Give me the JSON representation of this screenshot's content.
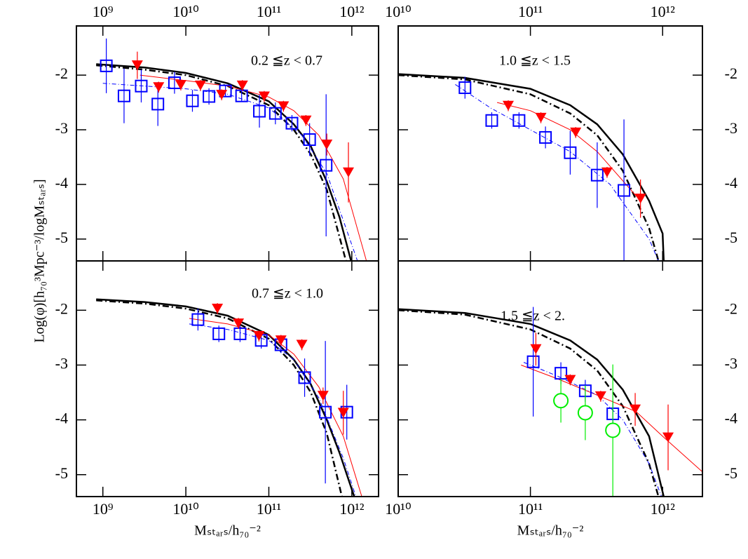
{
  "chart_data": [
    {
      "type": "scatter",
      "annotation": "0.2 ≦z < 0.7",
      "ylabel": "Log(φ)[h₇₀³Mpc⁻³/logMₛₜₐᵣₛ]",
      "xscale": "log",
      "xlim": [
        480000000.0,
        2100000000000.0
      ],
      "ylim": [
        -5.4,
        -1.1
      ],
      "xticks": [
        {
          "value": 1000000000.0,
          "label": "10⁹"
        },
        {
          "value": 10000000000.0,
          "label": "10¹⁰"
        },
        {
          "value": 100000000000.0,
          "label": "10¹¹"
        },
        {
          "value": 1000000000000.0,
          "label": "10¹²"
        }
      ],
      "yticks": [
        -2,
        -3,
        -4,
        -5
      ],
      "xtick_side": "top",
      "ytick_side": "left",
      "series": [
        {
          "style": "solid",
          "color": "#000000",
          "x": [
            830000000.0,
            3200000000.0,
            10000000000.0,
            32000000000.0,
            100000000000.0,
            200000000000.0,
            320000000000.0,
            500000000000.0,
            710000000000.0,
            980000000000.0
          ],
          "values": [
            -1.8,
            -1.86,
            -1.96,
            -2.15,
            -2.48,
            -2.9,
            -3.3,
            -3.95,
            -4.6,
            -5.4
          ]
        },
        {
          "style": "dashdot",
          "color": "#000000",
          "x": [
            830000000.0,
            3200000000.0,
            10000000000.0,
            32000000000.0,
            100000000000.0,
            200000000000.0,
            320000000000.0,
            500000000000.0,
            850000000000.0
          ],
          "values": [
            -1.82,
            -1.9,
            -2.0,
            -2.2,
            -2.55,
            -3.0,
            -3.45,
            -4.1,
            -5.4
          ]
        },
        {
          "style": "thin",
          "color": "#ff0000",
          "x": [
            2800000000.0,
            10000000000.0,
            32000000000.0,
            100000000000.0,
            200000000000.0,
            400000000000.0,
            790000000000.0,
            1500000000000.0
          ],
          "values": [
            -2.0,
            -2.1,
            -2.2,
            -2.4,
            -2.65,
            -3.1,
            -3.9,
            -5.4
          ]
        },
        {
          "style": "thindash",
          "color": "#0000ff",
          "x": [
            1000000000.0,
            3200000000.0,
            10000000000.0,
            32000000000.0,
            100000000000.0,
            250000000000.0,
            500000000000.0,
            1170000000000.0
          ],
          "values": [
            -2.15,
            -2.2,
            -2.25,
            -2.35,
            -2.6,
            -3.1,
            -3.8,
            -5.4
          ]
        },
        {
          "style": "square",
          "color": "#0000ff",
          "x": [
            1100000000.0,
            1800000000.0,
            2900000000.0,
            4600000000.0,
            7300000000.0,
            12000000000.0,
            19000000000.0,
            30000000000.0,
            47000000000.0,
            77000000000.0,
            120000000000.0,
            190000000000.0,
            310000000000.0,
            490000000000.0
          ],
          "values": [
            -1.83,
            -2.38,
            -2.2,
            -2.53,
            -2.14,
            -2.47,
            -2.39,
            -2.29,
            -2.38,
            -2.66,
            -2.7,
            -2.88,
            -3.18,
            -3.65
          ],
          "errors": [
            0.5,
            0.5,
            0.3,
            0.4,
            0.2,
            0.2,
            0.15,
            0.1,
            0.1,
            0.3,
            0.2,
            0.15,
            0.3,
            1.3
          ]
        },
        {
          "style": "triangle",
          "color": "#ff0000",
          "x": [
            2600000000.0,
            4700000000.0,
            8700000000.0,
            15000000000.0,
            27000000000.0,
            48000000000.0,
            88000000000.0,
            150000000000.0,
            280000000000.0,
            500000000000.0,
            910000000000.0
          ],
          "values": [
            -1.82,
            -2.22,
            -2.18,
            -2.19,
            -2.36,
            -2.19,
            -2.39,
            -2.57,
            -2.83,
            -3.27,
            -3.78
          ],
          "errors": [
            0.25,
            0.1,
            0.1,
            0.1,
            0.1,
            0.1,
            0.1,
            0.1,
            0.1,
            0.2,
            0.55
          ]
        }
      ]
    },
    {
      "type": "scatter",
      "annotation": "1.0 ≦z < 1.5",
      "xscale": "log",
      "xlim": [
        10000000000.0,
        2000000000000.0
      ],
      "ylim": [
        -5.4,
        -1.1
      ],
      "xticks": [
        {
          "value": 10000000000.0,
          "label": "10¹⁰"
        },
        {
          "value": 100000000000.0,
          "label": "10¹¹"
        },
        {
          "value": 1000000000000.0,
          "label": "10¹²"
        }
      ],
      "yticks": [
        -2,
        -3,
        -4,
        -5
      ],
      "xtick_side": "top",
      "ytick_side": "right",
      "series": [
        {
          "style": "solid",
          "color": "#000000",
          "x": [
            10000000000.0,
            32000000000.0,
            100000000000.0,
            200000000000.0,
            320000000000.0,
            500000000000.0,
            790000000000.0,
            1000000000000.0,
            1020000000000.0
          ],
          "values": [
            -1.98,
            -2.05,
            -2.25,
            -2.55,
            -2.9,
            -3.45,
            -4.3,
            -4.9,
            -5.4
          ]
        },
        {
          "style": "dashdot",
          "color": "#000000",
          "x": [
            10000000000.0,
            32000000000.0,
            100000000000.0,
            200000000000.0,
            320000000000.0,
            500000000000.0,
            790000000000.0,
            930000000000.0
          ],
          "values": [
            -2.0,
            -2.08,
            -2.35,
            -2.7,
            -3.1,
            -3.75,
            -4.8,
            -5.4
          ]
        },
        {
          "style": "thin",
          "color": "#ff0000",
          "x": [
            56000000000.0,
            100000000000.0,
            200000000000.0,
            320000000000.0,
            680000000000.0
          ],
          "values": [
            -2.5,
            -2.65,
            -3.0,
            -3.4,
            -4.3
          ]
        },
        {
          "style": "thindash",
          "color": "#0000ff",
          "x": [
            27000000000.0,
            50000000000.0,
            100000000000.0,
            200000000000.0,
            400000000000.0,
            790000000000.0,
            930000000000.0
          ],
          "values": [
            -2.17,
            -2.6,
            -3.0,
            -3.4,
            -4.0,
            -5.0,
            -5.4
          ]
        },
        {
          "style": "square",
          "color": "#0000ff",
          "x": [
            32000000000.0,
            51000000000.0,
            82000000000.0,
            130000000000.0,
            200000000000.0,
            320000000000.0,
            510000000000.0
          ],
          "values": [
            -2.23,
            -2.83,
            -2.83,
            -3.14,
            -3.42,
            -3.83,
            -4.11
          ],
          "errors": [
            0.2,
            0.15,
            0.15,
            0.2,
            0.4,
            0.6,
            1.3
          ]
        },
        {
          "style": "triangle",
          "color": "#ff0000",
          "x": [
            68000000000.0,
            120000000000.0,
            220000000000.0,
            380000000000.0,
            680000000000.0
          ],
          "values": [
            -2.56,
            -2.78,
            -3.05,
            -3.78,
            -4.26
          ],
          "errors": [
            0.1,
            0.1,
            0.1,
            0.1,
            0.35
          ]
        }
      ]
    },
    {
      "type": "scatter",
      "annotation": "0.7 ≦z < 1.0",
      "xlabel": "Mₛₜₐᵣₛ/h₇₀⁻²",
      "xscale": "log",
      "xlim": [
        480000000.0,
        2100000000000.0
      ],
      "ylim": [
        -5.4,
        -1.1
      ],
      "xticks": [
        {
          "value": 1000000000.0,
          "label": "10⁹"
        },
        {
          "value": 10000000000.0,
          "label": "10¹⁰"
        },
        {
          "value": 100000000000.0,
          "label": "10¹¹"
        },
        {
          "value": 1000000000000.0,
          "label": "10¹²"
        }
      ],
      "yticks": [
        -2,
        -3,
        -4,
        -5
      ],
      "xtick_side": "bottom",
      "ytick_side": "left",
      "series": [
        {
          "style": "solid",
          "color": "#000000",
          "x": [
            830000000.0,
            3200000000.0,
            10000000000.0,
            32000000000.0,
            100000000000.0,
            200000000000.0,
            320000000000.0,
            500000000000.0,
            710000000000.0,
            1070000000000.0
          ],
          "values": [
            -1.8,
            -1.85,
            -1.93,
            -2.1,
            -2.45,
            -2.9,
            -3.35,
            -4.0,
            -4.6,
            -5.4
          ]
        },
        {
          "style": "dashdot",
          "color": "#000000",
          "x": [
            830000000.0,
            3200000000.0,
            10000000000.0,
            32000000000.0,
            100000000000.0,
            200000000000.0,
            320000000000.0,
            500000000000.0,
            760000000000.0
          ],
          "values": [
            -1.82,
            -1.88,
            -1.97,
            -2.15,
            -2.52,
            -3.0,
            -3.5,
            -4.25,
            -5.4
          ]
        },
        {
          "style": "thin",
          "color": "#ff0000",
          "x": [
            11000000000.0,
            32000000000.0,
            100000000000.0,
            200000000000.0,
            400000000000.0,
            790000000000.0,
            1320000000000.0
          ],
          "values": [
            -2.15,
            -2.25,
            -2.45,
            -2.8,
            -3.4,
            -4.3,
            -5.4
          ]
        },
        {
          "style": "thindash",
          "color": "#0000ff",
          "x": [
            11000000000.0,
            32000000000.0,
            100000000000.0,
            200000000000.0,
            400000000000.0,
            790000000000.0,
            1120000000000.0
          ],
          "values": [
            -2.25,
            -2.35,
            -2.55,
            -2.9,
            -3.6,
            -4.7,
            -5.4
          ]
        },
        {
          "style": "square",
          "color": "#0000ff",
          "x": [
            14000000000.0,
            25000000000.0,
            45000000000.0,
            81000000000.0,
            140000000000.0,
            270000000000.0,
            480000000000.0,
            870000000000.0
          ],
          "values": [
            -2.17,
            -2.43,
            -2.43,
            -2.55,
            -2.63,
            -3.23,
            -3.86,
            -3.86
          ],
          "errors": [
            0.2,
            0.15,
            0.15,
            0.15,
            0.15,
            0.35,
            1.3,
            0.5
          ]
        },
        {
          "style": "triangle",
          "color": "#ff0000",
          "x": [
            24000000000.0,
            43000000000.0,
            76000000000.0,
            140000000000.0,
            250000000000.0,
            450000000000.0,
            790000000000.0
          ],
          "values": [
            -1.97,
            -2.24,
            -2.47,
            -2.55,
            -2.63,
            -3.56,
            -3.87
          ],
          "errors": [
            0.1,
            0.1,
            0.1,
            0.1,
            0.1,
            0.15,
            0.4
          ]
        }
      ]
    },
    {
      "type": "scatter",
      "annotation": "1.5 ≦z < 2.",
      "xlabel": "Mₛₜₐᵣₛ/h₇₀⁻²",
      "xscale": "log",
      "xlim": [
        10000000000.0,
        2000000000000.0
      ],
      "ylim": [
        -5.4,
        -1.1
      ],
      "xticks": [
        {
          "value": 10000000000.0,
          "label": "10¹⁰"
        },
        {
          "value": 100000000000.0,
          "label": "10¹¹"
        },
        {
          "value": 1000000000000.0,
          "label": "10¹²"
        }
      ],
      "yticks": [
        -2,
        -3,
        -4,
        -5
      ],
      "xtick_side": "bottom",
      "ytick_side": "right",
      "series": [
        {
          "style": "solid",
          "color": "#000000",
          "x": [
            10000000000.0,
            32000000000.0,
            100000000000.0,
            200000000000.0,
            320000000000.0,
            500000000000.0,
            790000000000.0,
            1020000000000.0
          ],
          "values": [
            -1.98,
            -2.05,
            -2.25,
            -2.55,
            -2.9,
            -3.45,
            -4.3,
            -5.4
          ]
        },
        {
          "style": "dashdot",
          "color": "#000000",
          "x": [
            10000000000.0,
            32000000000.0,
            100000000000.0,
            200000000000.0,
            320000000000.0,
            500000000000.0,
            790000000000.0,
            930000000000.0
          ],
          "values": [
            -2.0,
            -2.08,
            -2.35,
            -2.7,
            -3.1,
            -3.75,
            -4.8,
            -5.4
          ]
        },
        {
          "style": "thin",
          "color": "#ff0000",
          "x": [
            85000000000.0,
            160000000000.0,
            320000000000.0,
            630000000000.0,
            1000000000000.0,
            2000000000000.0
          ],
          "values": [
            -3.0,
            -3.25,
            -3.55,
            -3.85,
            -4.3,
            -4.95
          ]
        },
        {
          "style": "thindash",
          "color": "#0000ff",
          "x": [
            89000000000.0,
            160000000000.0,
            320000000000.0,
            500000000000.0,
            790000000000.0,
            980000000000.0
          ],
          "values": [
            -2.95,
            -3.2,
            -3.55,
            -4.0,
            -4.8,
            -5.4
          ]
        },
        {
          "style": "square",
          "color": "#0000ff",
          "x": [
            105000000000.0,
            170000000000.0,
            260000000000.0,
            420000000000.0
          ],
          "values": [
            -2.94,
            -3.15,
            -3.47,
            -3.89
          ],
          "errors": [
            1.0,
            0.2,
            0.2,
            0.25
          ]
        },
        {
          "style": "triangle",
          "color": "#ff0000",
          "x": [
            110000000000.0,
            200000000000.0,
            340000000000.0,
            620000000000.0,
            1100000000000.0
          ],
          "values": [
            -2.71,
            -3.27,
            -3.57,
            -3.81,
            -4.32
          ],
          "errors": [
            0.3,
            0.1,
            0.1,
            0.3,
            0.6
          ]
        },
        {
          "style": "circle",
          "color": "#00ee00",
          "x": [
            170000000000.0,
            260000000000.0,
            420000000000.0
          ],
          "values": [
            -3.65,
            -3.87,
            -4.19
          ],
          "errors": [
            0.4,
            0.5,
            1.2
          ]
        }
      ]
    }
  ]
}
